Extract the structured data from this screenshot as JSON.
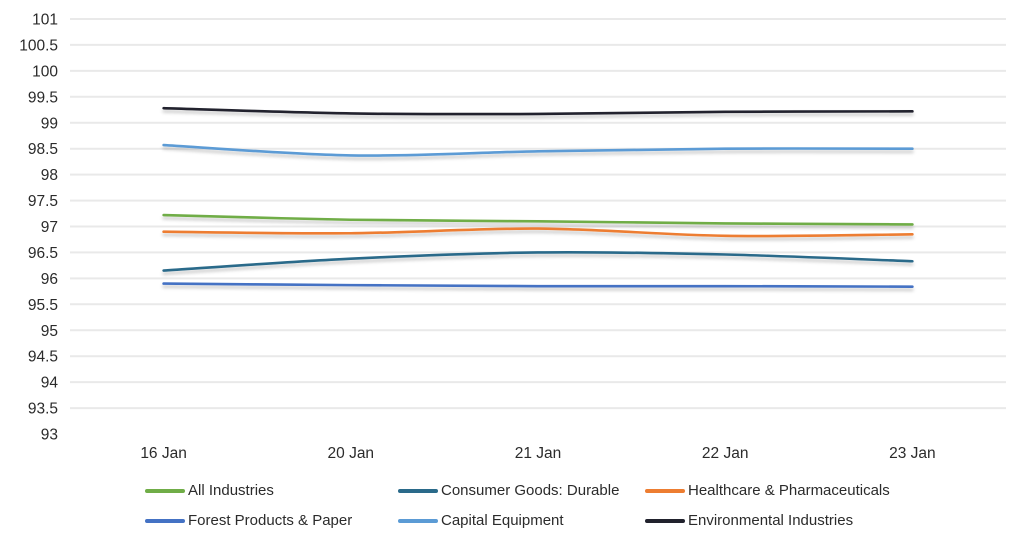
{
  "chart_data": {
    "type": "line",
    "title": "",
    "xlabel": "",
    "ylabel": "",
    "categories": [
      "16 Jan",
      "20 Jan",
      "21 Jan",
      "22 Jan",
      "23 Jan"
    ],
    "series": [
      {
        "name": "All Industries",
        "color": "#70AD47",
        "values": [
          97.22,
          97.13,
          97.1,
          97.06,
          97.04
        ]
      },
      {
        "name": "Consumer Goods: Durable",
        "color": "#2A6A8A",
        "values": [
          96.15,
          96.38,
          96.5,
          96.46,
          96.33
        ]
      },
      {
        "name": "Healthcare & Pharmaceuticals",
        "color": "#ED7D31",
        "values": [
          96.9,
          96.87,
          96.96,
          96.82,
          96.85
        ]
      },
      {
        "name": "Forest Products & Paper",
        "color": "#4472C4",
        "values": [
          95.9,
          95.87,
          95.85,
          95.85,
          95.84
        ]
      },
      {
        "name": "Capital Equipment",
        "color": "#5B9BD5",
        "values": [
          98.57,
          98.37,
          98.45,
          98.5,
          98.5
        ]
      },
      {
        "name": "Environmental Industries",
        "color": "#21222D",
        "values": [
          99.28,
          99.18,
          99.17,
          99.21,
          99.22
        ]
      }
    ],
    "ylim": [
      93,
      101
    ],
    "ytick_step": 0.5,
    "ytick_labels": [
      "93",
      "93.5",
      "94",
      "94.5",
      "95",
      "95.5",
      "96",
      "96.5",
      "97",
      "97.5",
      "98",
      "98.5",
      "99",
      "99.5",
      "100",
      "100.5",
      "101"
    ],
    "grid": true,
    "baseline_gridline_shown": false,
    "smooth_lines": true,
    "legend_position": "bottom",
    "legend_rows": 2,
    "legend_columns": 3,
    "gridline_color": "#E9E9E9"
  }
}
